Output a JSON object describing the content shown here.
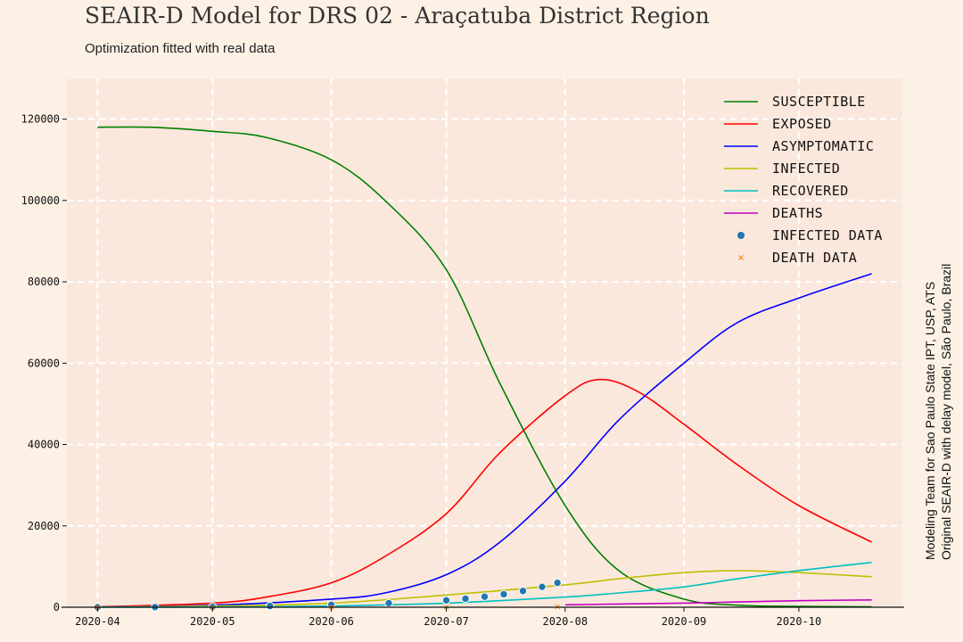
{
  "header": {
    "title": "SEAIR-D Model for DRS 02 - Araçatuba District Region",
    "subtitle": "Optimization fitted with real data"
  },
  "side_note": {
    "line1": "Modeling Team for Sao Paulo State IPT, USP, ATS",
    "line2": "Original SEAIR-D with delay model, São Paulo, Brazil"
  },
  "colors": {
    "background": "#fdf1e6",
    "plot_background": "#fbe8dc",
    "grid": "#ffffff"
  },
  "chart_data": {
    "type": "line",
    "title": "SEAIR-D Model for DRS 02 - Araçatuba District Region",
    "subtitle": "Optimization fitted with real data",
    "xlabel": "",
    "ylabel": "",
    "x_axis_type": "date",
    "xlim": [
      "2020-03-24",
      "2020-10-28"
    ],
    "ylim": [
      0,
      130000
    ],
    "x_ticks": [
      "2020-04",
      "2020-05",
      "2020-06",
      "2020-07",
      "2020-08",
      "2020-09",
      "2020-10"
    ],
    "y_ticks": [
      0,
      20000,
      40000,
      60000,
      80000,
      100000,
      120000
    ],
    "grid": true,
    "legend_position": "top-right",
    "series": [
      {
        "name": "Susceptible",
        "color": "#008000",
        "style": "line",
        "x": [
          "2020-04-01",
          "2020-04-15",
          "2020-05-01",
          "2020-05-15",
          "2020-06-01",
          "2020-06-15",
          "2020-07-01",
          "2020-07-15",
          "2020-08-01",
          "2020-08-15",
          "2020-09-01",
          "2020-09-15",
          "2020-10-01",
          "2020-10-20"
        ],
        "y": [
          118000,
          118000,
          117000,
          115500,
          110000,
          100000,
          83000,
          55000,
          25000,
          9000,
          2000,
          500,
          200,
          100
        ]
      },
      {
        "name": "Exposed",
        "color": "#ff0000",
        "style": "line",
        "x": [
          "2020-04-01",
          "2020-05-01",
          "2020-05-15",
          "2020-06-01",
          "2020-06-15",
          "2020-07-01",
          "2020-07-15",
          "2020-08-01",
          "2020-08-10",
          "2020-08-20",
          "2020-09-01",
          "2020-09-15",
          "2020-10-01",
          "2020-10-20"
        ],
        "y": [
          100,
          1000,
          2500,
          6000,
          12500,
          23000,
          38000,
          52000,
          56000,
          53000,
          45000,
          35000,
          25000,
          16000
        ]
      },
      {
        "name": "Asymptomatic",
        "color": "#0000ff",
        "style": "line",
        "x": [
          "2020-04-01",
          "2020-05-01",
          "2020-06-01",
          "2020-06-15",
          "2020-07-01",
          "2020-07-15",
          "2020-08-01",
          "2020-08-15",
          "2020-09-01",
          "2020-09-15",
          "2020-10-01",
          "2020-10-20"
        ],
        "y": [
          50,
          500,
          2000,
          3500,
          8000,
          16000,
          31000,
          46000,
          60000,
          70000,
          76000,
          82000
        ]
      },
      {
        "name": "Infected",
        "color": "#bfbf00",
        "style": "line",
        "x": [
          "2020-04-01",
          "2020-05-01",
          "2020-06-01",
          "2020-07-01",
          "2020-08-01",
          "2020-08-15",
          "2020-09-01",
          "2020-09-15",
          "2020-10-01",
          "2020-10-20"
        ],
        "y": [
          50,
          300,
          1000,
          3000,
          5500,
          7000,
          8500,
          9000,
          8500,
          7500
        ]
      },
      {
        "name": "Recovered",
        "color": "#00bfbf",
        "style": "line",
        "x": [
          "2020-04-01",
          "2020-05-01",
          "2020-06-01",
          "2020-07-01",
          "2020-08-01",
          "2020-08-15",
          "2020-09-01",
          "2020-09-15",
          "2020-10-01",
          "2020-10-20"
        ],
        "y": [
          0,
          50,
          300,
          1000,
          2500,
          3500,
          5000,
          7000,
          9000,
          11000
        ]
      },
      {
        "name": "Deaths",
        "color": "#bf00bf",
        "style": "line",
        "x": [
          "2020-08-01",
          "2020-08-15",
          "2020-09-01",
          "2020-09-15",
          "2020-10-01",
          "2020-10-20"
        ],
        "y": [
          600,
          800,
          1000,
          1300,
          1600,
          1800
        ]
      },
      {
        "name": "Infected data",
        "color": "#1f77b4",
        "style": "points",
        "x": [
          "2020-04-01",
          "2020-04-16",
          "2020-05-01",
          "2020-05-16",
          "2020-06-01",
          "2020-06-16",
          "2020-07-01",
          "2020-07-06",
          "2020-07-11",
          "2020-07-16",
          "2020-07-21",
          "2020-07-26",
          "2020-07-30"
        ],
        "y": [
          10,
          50,
          150,
          300,
          600,
          1000,
          1700,
          2100,
          2600,
          3200,
          4000,
          5000,
          6000
        ]
      },
      {
        "name": "Death data",
        "color": "#ff7f0e",
        "style": "x-points",
        "x": [
          "2020-04-01",
          "2020-05-01",
          "2020-06-01",
          "2020-07-01",
          "2020-07-30"
        ],
        "y": [
          0,
          5,
          20,
          60,
          120
        ]
      }
    ]
  }
}
